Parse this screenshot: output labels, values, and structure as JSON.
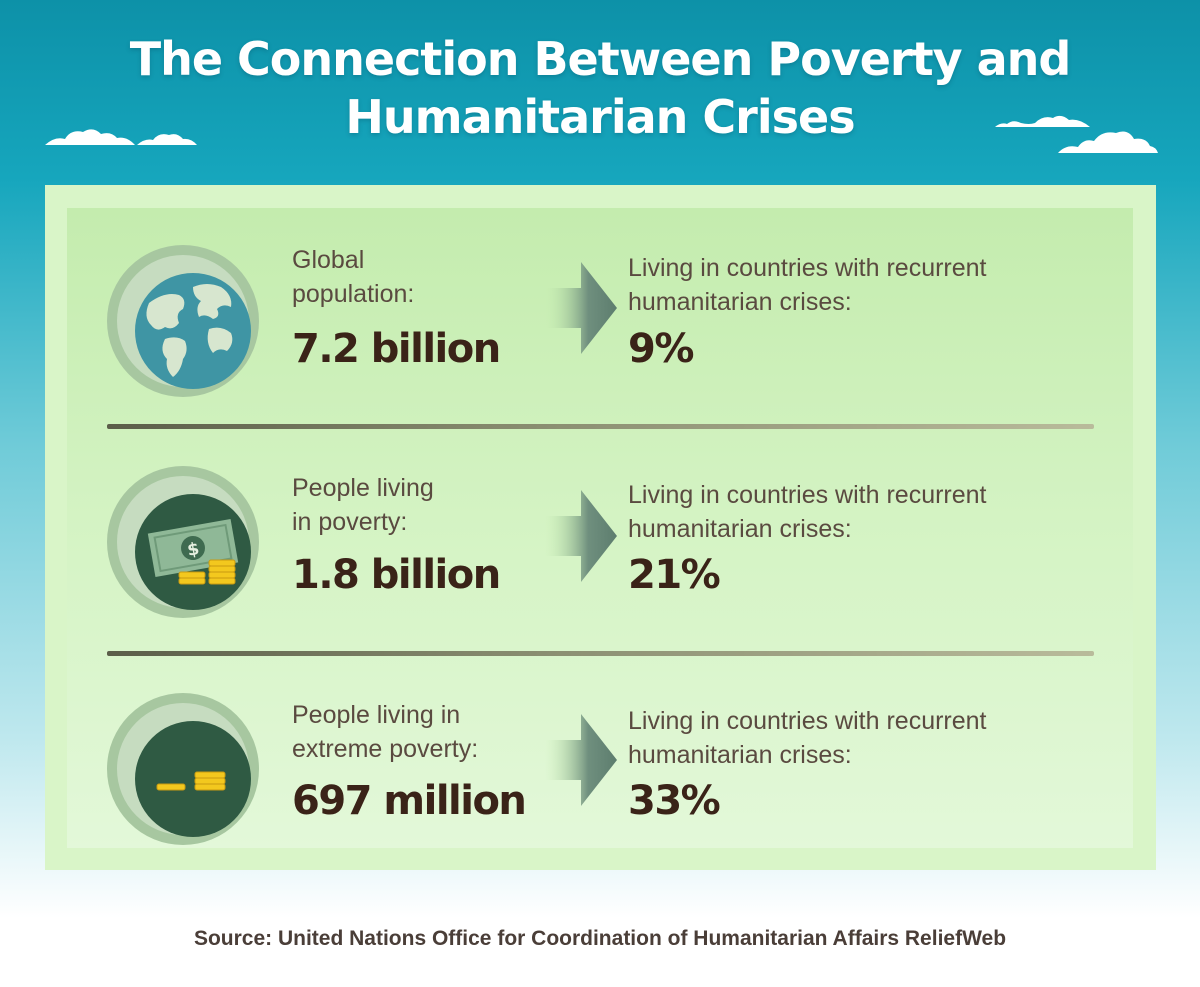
{
  "title_line1": "The Connection Between Poverty and",
  "title_line2": "Humanitarian Crises",
  "rows": [
    {
      "icon": "globe-icon",
      "label_line1": "Global",
      "label_line2": "population:",
      "value": "7.2 billion",
      "right_line1": "Living in countries with recurrent",
      "right_line2": "humanitarian crises:",
      "right_value": "9%"
    },
    {
      "icon": "money-icon",
      "label_line1": "People living",
      "label_line2": "in poverty:",
      "value": "1.8 billion",
      "right_line1": "Living in countries with recurrent",
      "right_line2": "humanitarian crises:",
      "right_value": "21%"
    },
    {
      "icon": "coins-icon",
      "label_line1": "People living in",
      "label_line2": "extreme poverty:",
      "value": "697 million",
      "right_line1": "Living in countries with recurrent",
      "right_line2": "humanitarian crises:",
      "right_value": "33%"
    }
  ],
  "source": "Source: United Nations Office for Coordination of Humanitarian Affairs ReliefWeb",
  "colors": {
    "sky_top": "#0d91a8",
    "panel": "#d9f5c8",
    "icon_dark": "#2f5a43",
    "text_dark": "#3a2318",
    "gold": "#f3c81e"
  }
}
